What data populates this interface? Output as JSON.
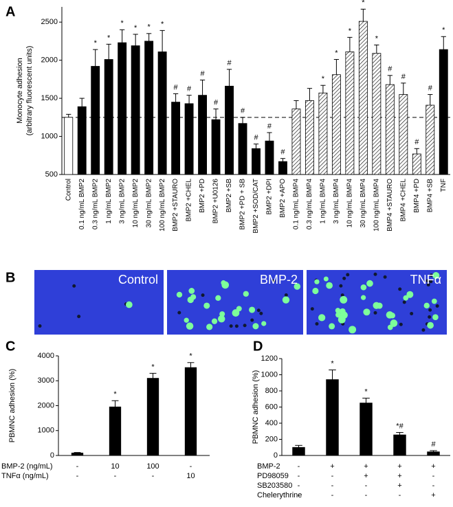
{
  "chart_data": [
    {
      "type": "bar",
      "panel": "A",
      "ylabel": [
        "Monocyte adhesion",
        "(arbitrary fluorescent units)"
      ],
      "categories": [
        "Control",
        "0.1 ng/mL BMP2",
        "0.3 ng/mL BMP2",
        "1 ng/mL BMP2",
        "3 ng/mL BMP2",
        "10 ng/mL BMP2",
        "30 ng/mL BMP2",
        "100 ng/mL BMP2",
        "BMP2 +STAURO",
        "BMP2 +CHEL",
        "BMP2 +PD",
        "BMP2 +U0126",
        "BMP2 +SB",
        "BMP2 +PD + SB",
        "BMP2 +SOD/CAT",
        "BMP2 +DPI",
        "BMP2 +APO",
        "0.1 ng/mL BMP4",
        "0.3 ng/mL BMP4",
        "1 ng/mL BMP4",
        "3 ng/mL BMP4",
        "10 ng/mL BMP4",
        "30 ng/mL BMP4",
        "100 ng/mL BMP4",
        "BMP4 +STAURO",
        "BMP4 +CHEL",
        "BMP4 +PD",
        "BMP4 +SB",
        "TNF"
      ],
      "values": [
        1250,
        1390,
        1920,
        2010,
        2230,
        2190,
        2250,
        2110,
        1450,
        1430,
        1540,
        1220,
        1660,
        1170,
        840,
        940,
        670,
        1360,
        1470,
        1570,
        1810,
        2110,
        2510,
        2090,
        1680,
        1550,
        770,
        1410,
        2140
      ],
      "errors": [
        40,
        110,
        220,
        200,
        170,
        150,
        100,
        280,
        110,
        110,
        200,
        140,
        220,
        80,
        60,
        110,
        40,
        110,
        160,
        100,
        200,
        190,
        160,
        110,
        120,
        150,
        70,
        140,
        170
      ],
      "annotations": [
        null,
        null,
        "*",
        "*",
        "*",
        "*",
        "*",
        "*",
        "#",
        "#",
        "#",
        "#",
        "#",
        "#",
        "#",
        "#",
        "#",
        null,
        null,
        "*",
        "*",
        "*",
        "*",
        "*",
        "#",
        "#",
        "#",
        "#",
        "*"
      ],
      "bar_styles": [
        "open",
        "solid",
        "solid",
        "solid",
        "solid",
        "solid",
        "solid",
        "solid",
        "solid",
        "solid",
        "solid",
        "solid",
        "solid",
        "solid",
        "solid",
        "solid",
        "solid",
        "hatched",
        "hatched",
        "hatched",
        "hatched",
        "hatched",
        "hatched",
        "hatched",
        "hatched",
        "hatched",
        "hatched",
        "hatched",
        "solid"
      ],
      "color": "#000000",
      "reference_line": 1250,
      "ylim": [
        500,
        2700
      ],
      "yticks": [
        500,
        1000,
        1500,
        2000,
        2500
      ]
    },
    {
      "type": "bar",
      "panel": "C",
      "ylabel": [
        "PBMNC adhesion (%)"
      ],
      "values": [
        100,
        1950,
        3100,
        3530
      ],
      "errors": [
        20,
        250,
        200,
        200
      ],
      "annotations": [
        null,
        "*",
        "*",
        "*"
      ],
      "conditions": [
        {
          "label": "BMP-2 (ng/mL)",
          "values": [
            "-",
            "10",
            "100",
            "-"
          ]
        },
        {
          "label": "TNFα (ng/mL)",
          "values": [
            "-",
            "-",
            "-",
            "10"
          ]
        }
      ],
      "color": "#000000",
      "ylim": [
        0,
        4000
      ],
      "yticks": [
        0,
        1000,
        2000,
        3000,
        4000
      ]
    },
    {
      "type": "bar",
      "panel": "D",
      "ylabel": [
        "PBMNC adhesion (%)"
      ],
      "values": [
        100,
        940,
        650,
        255,
        45
      ],
      "errors": [
        25,
        120,
        60,
        30,
        15
      ],
      "annotations": [
        null,
        "*",
        "*",
        "*#",
        "#"
      ],
      "conditions": [
        {
          "label": "BMP-2",
          "values": [
            "-",
            "+",
            "+",
            "+",
            "+"
          ]
        },
        {
          "label": "PD98059",
          "values": [
            "-",
            "-",
            "+",
            "+",
            "-"
          ]
        },
        {
          "label": "SB203580",
          "values": [
            "-",
            "-",
            "-",
            "+",
            "-"
          ]
        },
        {
          "label": "Chelerythrine",
          "values": [
            "-",
            "-",
            "-",
            "-",
            "+"
          ]
        }
      ],
      "color": "#000000",
      "ylim": [
        0,
        1200
      ],
      "yticks": [
        0,
        200,
        400,
        600,
        800,
        1000,
        1200
      ]
    }
  ],
  "micrographs": {
    "panel": "B",
    "images": [
      {
        "label": "Control"
      },
      {
        "label": "BMP-2"
      },
      {
        "label": "TNFα"
      }
    ]
  }
}
